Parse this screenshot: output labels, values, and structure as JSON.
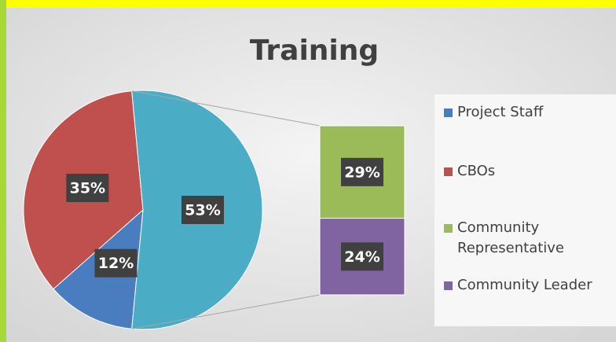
{
  "chart_data": {
    "type": "bar-of-pie",
    "title": "Training",
    "pie": {
      "categories": [
        "Project Staff",
        "CBOs",
        null
      ],
      "values": [
        12,
        35,
        53
      ],
      "value_labels": [
        "12%",
        "35%",
        "53%"
      ],
      "colors": [
        "#4a7cc0",
        "#c0504d",
        "#4bacc6"
      ]
    },
    "bar": {
      "categories": [
        "Community Representative",
        "Community Leader"
      ],
      "values": [
        29,
        24
      ],
      "value_labels": [
        "29%",
        "24%"
      ],
      "colors": [
        "#9bbb59",
        "#8064a2"
      ]
    }
  }
}
